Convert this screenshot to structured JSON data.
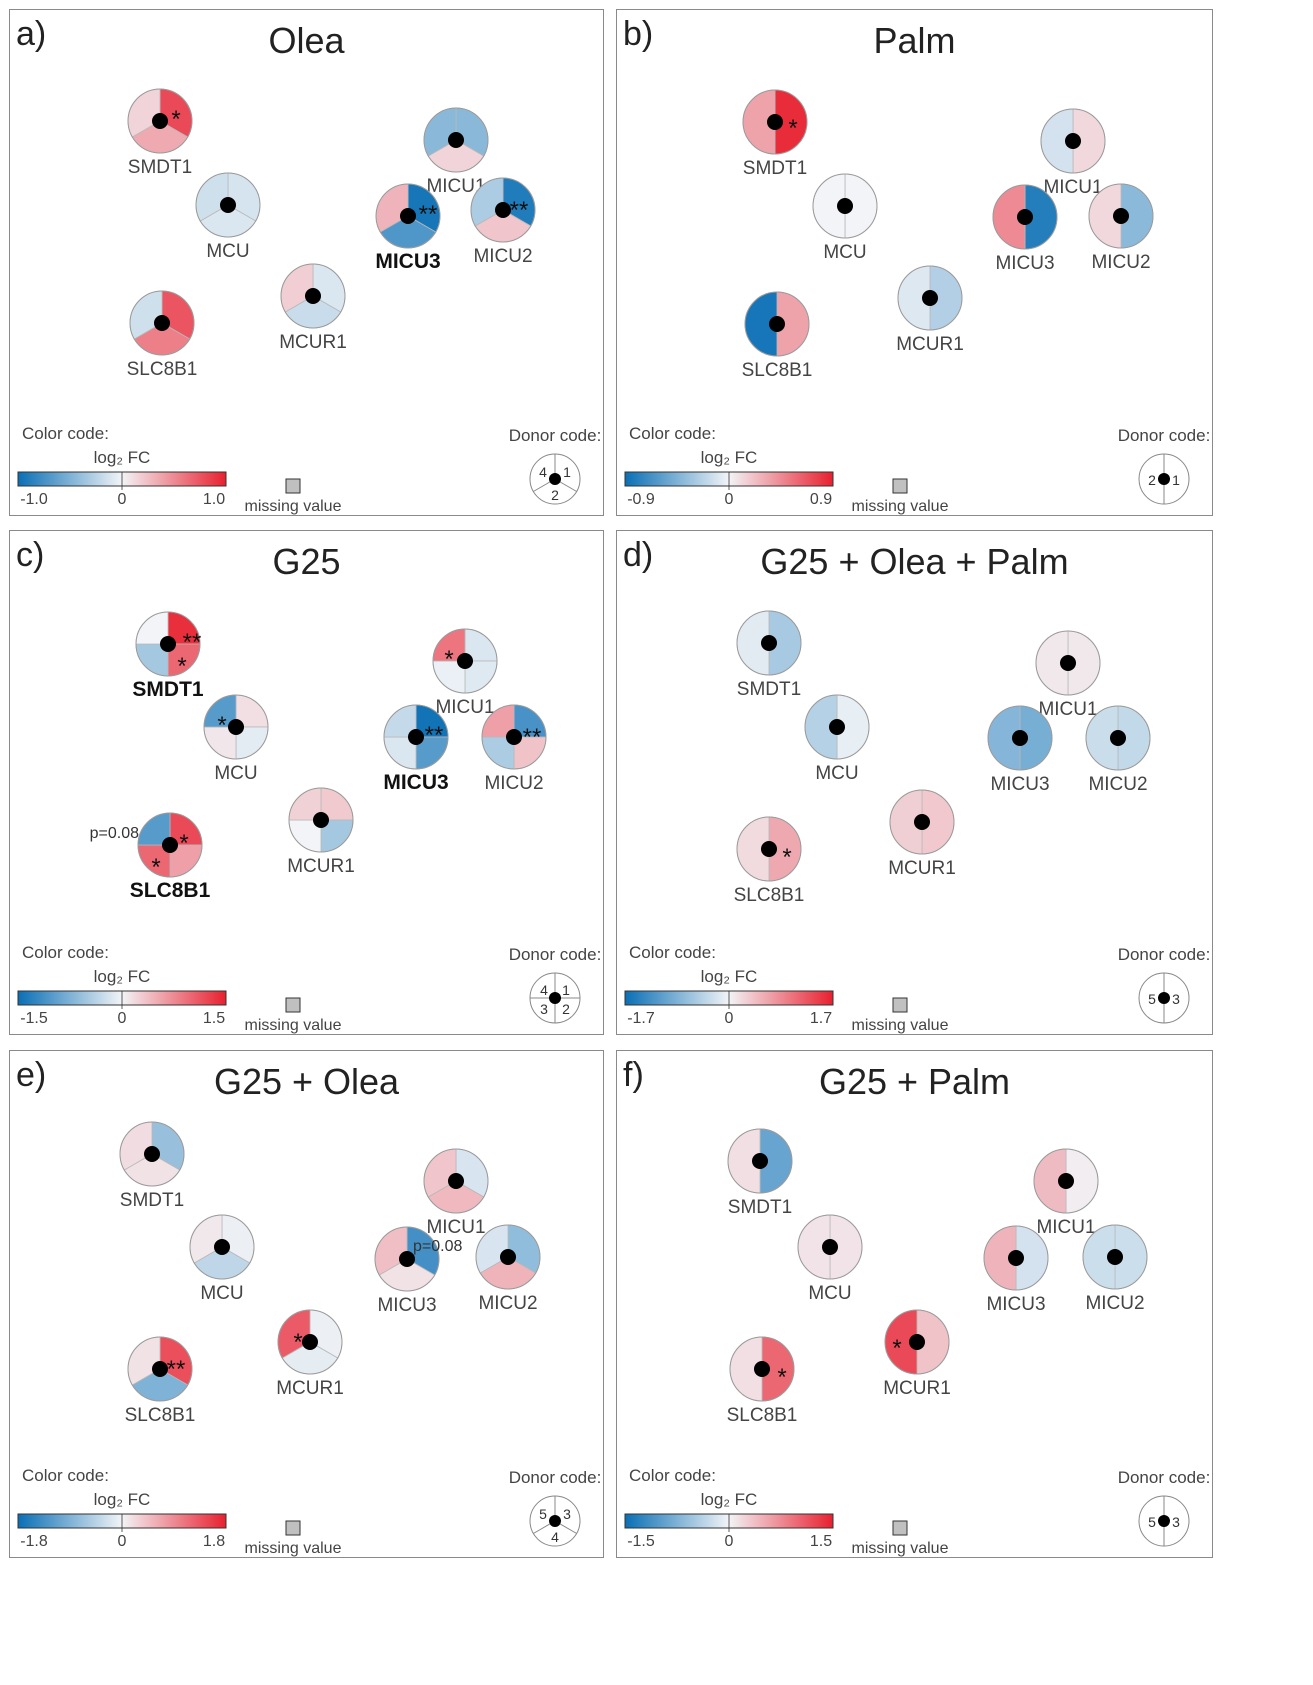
{
  "legend_common": {
    "color_code_label": "Color code:",
    "scale_label": "log₂ FC",
    "missing_label": "missing value",
    "donor_code_label": "Donor code:",
    "neg_color": "#0a6fb5",
    "mid_color": "#f2f4f7",
    "pos_color": "#e8202f",
    "missing_color": "#c0c0c0"
  },
  "panels": [
    {
      "letter": "a)",
      "title": "Olea",
      "scale": [
        "-1.0",
        "0",
        "1.0"
      ],
      "maxFC": 1.0,
      "donor": {
        "sectors": 3,
        "labels": [
          "1",
          "2",
          "4"
        ]
      },
      "genes": [
        {
          "name": "SMDT1",
          "bold": false,
          "values": [
            0.8,
            0.35,
            0.15
          ]
        },
        {
          "name": "MCU",
          "bold": false,
          "values": [
            -0.12,
            -0.1,
            -0.15
          ]
        },
        {
          "name": "SLC8B1",
          "bold": false,
          "values": [
            0.75,
            0.55,
            -0.15
          ]
        },
        {
          "name": "MCUR1",
          "bold": false,
          "values": [
            -0.1,
            -0.18,
            0.18
          ]
        },
        {
          "name": "MICU1",
          "bold": false,
          "values": [
            -0.45,
            0.15,
            -0.45
          ]
        },
        {
          "name": "MICU3",
          "bold": true,
          "values": [
            -0.95,
            -0.7,
            0.3
          ]
        },
        {
          "name": "MICU2",
          "bold": false,
          "values": [
            -0.9,
            0.22,
            -0.3
          ]
        }
      ]
    },
    {
      "letter": "b)",
      "title": "Palm",
      "scale": [
        "-0.9",
        "0",
        "0.9"
      ],
      "maxFC": 0.9,
      "donor": {
        "sectors": 2,
        "labels": [
          "1",
          "2"
        ]
      },
      "genes": [
        {
          "name": "SMDT1",
          "bold": false,
          "values": [
            0.85,
            0.35
          ]
        },
        {
          "name": "MCU",
          "bold": false,
          "values": [
            0.0,
            0.0
          ]
        },
        {
          "name": "SLC8B1",
          "bold": false,
          "values": [
            0.35,
            -0.85
          ]
        },
        {
          "name": "MCUR1",
          "bold": false,
          "values": [
            -0.25,
            -0.08
          ]
        },
        {
          "name": "MICU1",
          "bold": false,
          "values": [
            0.12,
            -0.12
          ]
        },
        {
          "name": "MICU3",
          "bold": false,
          "values": [
            -0.8,
            0.45
          ]
        },
        {
          "name": "MICU2",
          "bold": false,
          "values": [
            -0.4,
            0.12
          ]
        }
      ]
    },
    {
      "letter": "c)",
      "title": "G25",
      "scale": [
        "-1.5",
        "0",
        "1.5"
      ],
      "maxFC": 1.5,
      "donor": {
        "sectors": 4,
        "labels": [
          "1",
          "2",
          "3",
          "4"
        ]
      },
      "genes": [
        {
          "name": "SMDT1",
          "bold": true,
          "values": [
            1.4,
            1.0,
            -0.5,
            0.0
          ]
        },
        {
          "name": "MCU",
          "bold": false,
          "values": [
            0.15,
            -0.1,
            0.1,
            -1.0
          ]
        },
        {
          "name": "SLC8B1",
          "bold": true,
          "values": [
            1.2,
            0.6,
            1.0,
            -1.0
          ]
        },
        {
          "name": "MCUR1",
          "bold": false,
          "values": [
            0.3,
            -0.5,
            0.0,
            0.25
          ]
        },
        {
          "name": "MICU1",
          "bold": false,
          "values": [
            -0.15,
            -0.12,
            -0.05,
            0.9
          ]
        },
        {
          "name": "MICU3",
          "bold": true,
          "values": [
            -1.45,
            -1.0,
            -0.15,
            -0.3
          ]
        },
        {
          "name": "MICU2",
          "bold": false,
          "values": [
            -1.1,
            0.35,
            -0.45,
            0.6
          ]
        }
      ]
    },
    {
      "letter": "d)",
      "title": "G25 + Olea + Palm",
      "scale": [
        "-1.7",
        "0",
        "1.7"
      ],
      "maxFC": 1.7,
      "donor": {
        "sectors": 2,
        "labels": [
          "3",
          "5"
        ]
      },
      "genes": [
        {
          "name": "SMDT1",
          "bold": false,
          "values": [
            -0.55,
            -0.12
          ]
        },
        {
          "name": "MCU",
          "bold": false,
          "values": [
            -0.08,
            -0.45
          ]
        },
        {
          "name": "SLC8B1",
          "bold": false,
          "values": [
            0.6,
            0.2
          ]
        },
        {
          "name": "MCUR1",
          "bold": false,
          "values": [
            0.35,
            0.3
          ]
        },
        {
          "name": "MICU1",
          "bold": false,
          "values": [
            0.1,
            0.1
          ]
        },
        {
          "name": "MICU3",
          "bold": false,
          "values": [
            -0.9,
            -0.8
          ]
        },
        {
          "name": "MICU2",
          "bold": false,
          "values": [
            -0.35,
            -0.3
          ]
        }
      ]
    },
    {
      "letter": "e)",
      "title": "G25 + Olea",
      "scale": [
        "-1.8",
        "0",
        "1.8"
      ],
      "maxFC": 1.8,
      "donor": {
        "sectors": 3,
        "labels": [
          "3",
          "4",
          "5"
        ]
      },
      "genes": [
        {
          "name": "SMDT1",
          "bold": false,
          "values": [
            -0.7,
            0.15,
            0.2
          ]
        },
        {
          "name": "MCU",
          "bold": false,
          "values": [
            -0.05,
            -0.4,
            0.1
          ]
        },
        {
          "name": "SLC8B1",
          "bold": false,
          "values": [
            1.4,
            -0.9,
            0.15
          ]
        },
        {
          "name": "MCUR1",
          "bold": false,
          "values": [
            -0.05,
            -0.1,
            1.3
          ]
        },
        {
          "name": "MICU1",
          "bold": false,
          "values": [
            -0.2,
            0.5,
            0.4
          ]
        },
        {
          "name": "MICU3",
          "bold": false,
          "values": [
            -1.35,
            0.15,
            0.45
          ]
        },
        {
          "name": "MICU2",
          "bold": false,
          "values": [
            -0.75,
            0.55,
            -0.2
          ]
        }
      ]
    },
    {
      "letter": "f)",
      "title": "G25 + Palm",
      "scale": [
        "-1.5",
        "0",
        "1.5"
      ],
      "maxFC": 1.5,
      "donor": {
        "sectors": 2,
        "labels": [
          "3",
          "5"
        ]
      },
      "genes": [
        {
          "name": "SMDT1",
          "bold": false,
          "values": [
            -0.9,
            0.15
          ]
        },
        {
          "name": "MCU",
          "bold": false,
          "values": [
            0.12,
            0.12
          ]
        },
        {
          "name": "SLC8B1",
          "bold": false,
          "values": [
            1.0,
            0.15
          ]
        },
        {
          "name": "MCUR1",
          "bold": false,
          "values": [
            0.35,
            1.2
          ]
        },
        {
          "name": "MICU1",
          "bold": false,
          "values": [
            0.05,
            0.4
          ]
        },
        {
          "name": "MICU3",
          "bold": false,
          "values": [
            -0.2,
            0.45
          ]
        },
        {
          "name": "MICU2",
          "bold": false,
          "values": [
            -0.25,
            -0.25
          ]
        }
      ]
    }
  ],
  "annotations": {
    "single_star": "*",
    "double_star": "**",
    "p_value": "p=0.08"
  }
}
